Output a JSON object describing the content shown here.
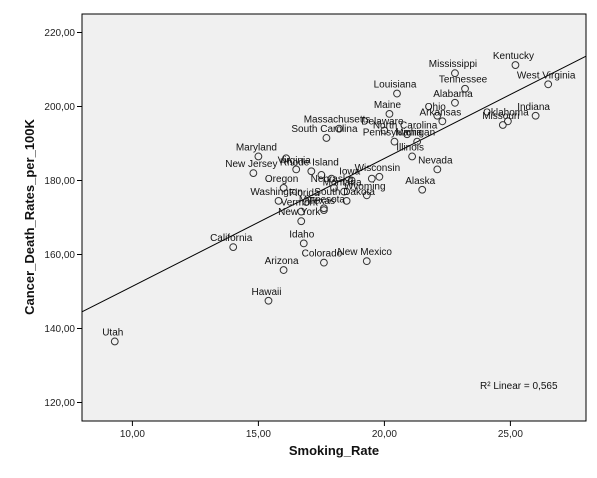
{
  "chart_data": {
    "type": "scatter",
    "xlabel": "Smoking_Rate",
    "ylabel": "Cancer_Death_Rates_per_100K",
    "xlim": [
      8.0,
      28.0
    ],
    "ylim": [
      115.0,
      225.0
    ],
    "x_ticks": [
      10,
      15,
      20,
      25
    ],
    "x_tick_labels": [
      "10,00",
      "15,00",
      "20,00",
      "25,00"
    ],
    "y_ticks": [
      120,
      140,
      160,
      180,
      200,
      220
    ],
    "y_tick_labels": [
      "120,00",
      "140,00",
      "160,00",
      "180,00",
      "200,00",
      "220,00"
    ],
    "grid": false,
    "plot_background": "#f0f0f0",
    "point_color": "#333333",
    "fit_line": {
      "x": [
        8.0,
        28.0
      ],
      "y": [
        144.5,
        213.6
      ]
    },
    "annotation": "R² Linear = 0,565",
    "points": [
      {
        "x": 9.3,
        "y": 136.5,
        "label": "Utah"
      },
      {
        "x": 15.4,
        "y": 147.5,
        "label": "Hawaii"
      },
      {
        "x": 14.0,
        "y": 162.0,
        "label": "California"
      },
      {
        "x": 16.0,
        "y": 155.8,
        "label": "Arizona"
      },
      {
        "x": 17.6,
        "y": 157.8,
        "label": "Colorado"
      },
      {
        "x": 19.3,
        "y": 158.2,
        "label": "New Mexico"
      },
      {
        "x": 16.8,
        "y": 163.0,
        "label": "Idaho"
      },
      {
        "x": 16.7,
        "y": 169.0,
        "label": "New York"
      },
      {
        "x": 16.7,
        "y": 171.6,
        "label": "Vermont"
      },
      {
        "x": 17.6,
        "y": 172.5,
        "label": "Minnesota"
      },
      {
        "x": 15.8,
        "y": 174.5,
        "label": "Washington"
      },
      {
        "x": 16.9,
        "y": 174.2,
        "label": "Florida"
      },
      {
        "x": 17.6,
        "y": 172.0,
        "label": "Texas"
      },
      {
        "x": 18.5,
        "y": 174.5,
        "label": "South Dakota"
      },
      {
        "x": 19.3,
        "y": 176.0,
        "label": "Wyoming"
      },
      {
        "x": 21.5,
        "y": 177.5,
        "label": "Alaska"
      },
      {
        "x": 18.0,
        "y": 178.0,
        "label": "Nebraska"
      },
      {
        "x": 18.4,
        "y": 177.0,
        "label": "Montana"
      },
      {
        "x": 16.0,
        "y": 178.0,
        "label": "Oregon"
      },
      {
        "x": 14.8,
        "y": 182.0,
        "label": "New Jersey"
      },
      {
        "x": 16.5,
        "y": 183.0,
        "label": "Virginia"
      },
      {
        "x": 17.1,
        "y": 182.5,
        "label": "Rhode Island"
      },
      {
        "x": 17.5,
        "y": 181.5,
        "label": ""
      },
      {
        "x": 17.9,
        "y": 180.5,
        "label": ""
      },
      {
        "x": 18.7,
        "y": 180.0,
        "label": "Iowa"
      },
      {
        "x": 19.5,
        "y": 180.5,
        "label": ""
      },
      {
        "x": 19.8,
        "y": 181.0,
        "label": "Wisconsin"
      },
      {
        "x": 22.1,
        "y": 183.0,
        "label": "Nevada"
      },
      {
        "x": 21.1,
        "y": 186.5,
        "label": "Illinois"
      },
      {
        "x": 15.0,
        "y": 186.5,
        "label": "Maryland"
      },
      {
        "x": 16.1,
        "y": 186.0,
        "label": ""
      },
      {
        "x": 21.3,
        "y": 190.5,
        "label": "Michigan"
      },
      {
        "x": 20.4,
        "y": 190.5,
        "label": "Pennsylvania"
      },
      {
        "x": 17.7,
        "y": 191.5,
        "label": "South Carolina"
      },
      {
        "x": 20.0,
        "y": 193.5,
        "label": "Delaware"
      },
      {
        "x": 20.9,
        "y": 192.5,
        "label": "North Carolina"
      },
      {
        "x": 18.2,
        "y": 194.0,
        "label": "Massachusetts"
      },
      {
        "x": 20.2,
        "y": 198.0,
        "label": "Maine"
      },
      {
        "x": 22.1,
        "y": 197.5,
        "label": "Ohio"
      },
      {
        "x": 22.3,
        "y": 196.0,
        "label": "Arkansas"
      },
      {
        "x": 24.9,
        "y": 196.0,
        "label": "Oklahoma"
      },
      {
        "x": 24.7,
        "y": 195.0,
        "label": "Missouri"
      },
      {
        "x": 26.0,
        "y": 197.5,
        "label": "Indiana"
      },
      {
        "x": 20.5,
        "y": 203.5,
        "label": "Louisiana"
      },
      {
        "x": 22.8,
        "y": 201.0,
        "label": "Alabama"
      },
      {
        "x": 23.2,
        "y": 204.8,
        "label": "Tennessee"
      },
      {
        "x": 26.5,
        "y": 206.0,
        "label": "West Virginia"
      },
      {
        "x": 22.8,
        "y": 209.0,
        "label": "Mississippi"
      },
      {
        "x": 25.2,
        "y": 211.2,
        "label": "Kentucky"
      }
    ]
  }
}
